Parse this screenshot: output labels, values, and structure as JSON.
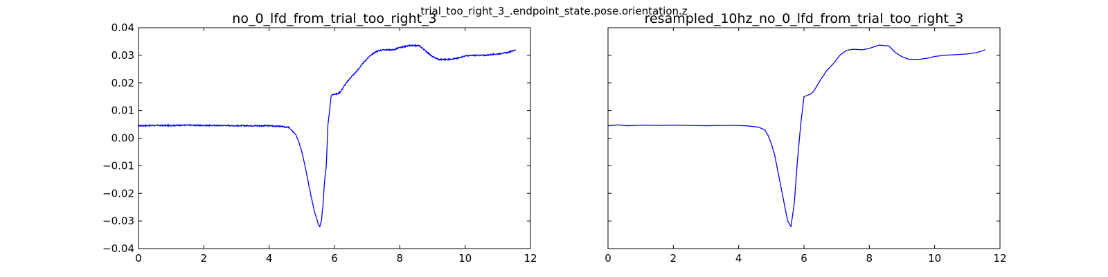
{
  "figure": {
    "suptitle": "trial_too_right_3_.endpoint_state.pose.orientation.z"
  },
  "chart_data": [
    {
      "type": "line",
      "title": "no_0_lfd_from_trial_too_right_3",
      "xlabel": "",
      "ylabel": "",
      "xlim": [
        0,
        12
      ],
      "ylim": [
        -0.04,
        0.04
      ],
      "xticks": [
        0,
        2,
        4,
        6,
        8,
        10,
        12
      ],
      "xtick_labels": [
        "0",
        "2",
        "4",
        "6",
        "8",
        "10",
        "12"
      ],
      "yticks": [
        -0.04,
        -0.03,
        -0.02,
        -0.01,
        0.0,
        0.01,
        0.02,
        0.03,
        0.04
      ],
      "ytick_labels": [
        "−0.04",
        "−0.03",
        "−0.02",
        "−0.01",
        "0.00",
        "0.01",
        "0.02",
        "0.03",
        "0.04"
      ],
      "grid": false,
      "series_color": "#0000ff",
      "noise": 0.0004,
      "x": [
        0.0,
        0.5,
        1.0,
        1.5,
        2.0,
        2.5,
        3.0,
        3.5,
        4.0,
        4.3,
        4.6,
        4.8,
        4.9,
        5.0,
        5.1,
        5.2,
        5.3,
        5.4,
        5.5,
        5.55,
        5.6,
        5.65,
        5.7,
        5.75,
        5.8,
        5.85,
        5.9,
        6.0,
        6.1,
        6.2,
        6.3,
        6.5,
        6.7,
        6.9,
        7.1,
        7.3,
        7.5,
        7.8,
        8.0,
        8.3,
        8.6,
        8.8,
        9.0,
        9.2,
        9.5,
        9.8,
        10.0,
        10.3,
        10.6,
        11.0,
        11.3,
        11.55
      ],
      "y": [
        0.0045,
        0.0046,
        0.0046,
        0.0047,
        0.0046,
        0.0046,
        0.0045,
        0.0045,
        0.0045,
        0.0043,
        0.0039,
        0.0015,
        -0.001,
        -0.005,
        -0.01,
        -0.016,
        -0.022,
        -0.027,
        -0.031,
        -0.0322,
        -0.03,
        -0.024,
        -0.015,
        -0.01,
        0.005,
        0.01,
        0.0155,
        0.016,
        0.016,
        0.017,
        0.019,
        0.022,
        0.0245,
        0.0275,
        0.03,
        0.0315,
        0.032,
        0.032,
        0.0328,
        0.0335,
        0.0335,
        0.0315,
        0.0295,
        0.0285,
        0.0285,
        0.029,
        0.0298,
        0.03,
        0.03,
        0.0305,
        0.031,
        0.032
      ]
    },
    {
      "type": "line",
      "title": "resampled_10hz_no_0_lfd_from_trial_too_right_3",
      "xlabel": "",
      "ylabel": "",
      "xlim": [
        0,
        12
      ],
      "ylim": [
        -0.04,
        0.04
      ],
      "xticks": [
        0,
        2,
        4,
        6,
        8,
        10,
        12
      ],
      "xtick_labels": [
        "0",
        "2",
        "4",
        "6",
        "8",
        "10",
        "12"
      ],
      "yticks": [
        -0.04,
        -0.03,
        -0.02,
        -0.01,
        0.0,
        0.01,
        0.02,
        0.03,
        0.04
      ],
      "ytick_labels": [],
      "grid": false,
      "series_color": "#0000ff",
      "noise": 0,
      "x": [
        0.0,
        0.3,
        0.6,
        1.0,
        1.5,
        2.0,
        2.5,
        3.0,
        3.5,
        4.0,
        4.3,
        4.6,
        4.8,
        4.9,
        5.0,
        5.1,
        5.2,
        5.3,
        5.4,
        5.5,
        5.6,
        5.7,
        5.8,
        5.9,
        6.0,
        6.1,
        6.2,
        6.3,
        6.5,
        6.7,
        6.9,
        7.1,
        7.3,
        7.5,
        7.8,
        8.0,
        8.3,
        8.6,
        8.8,
        9.0,
        9.2,
        9.5,
        9.8,
        10.0,
        10.3,
        10.6,
        11.0,
        11.3,
        11.55
      ],
      "y": [
        0.0045,
        0.0048,
        0.0045,
        0.0047,
        0.0046,
        0.0047,
        0.0046,
        0.0045,
        0.0046,
        0.0046,
        0.0044,
        0.004,
        0.003,
        0.001,
        -0.002,
        -0.006,
        -0.012,
        -0.018,
        -0.024,
        -0.03,
        -0.032,
        -0.024,
        -0.008,
        0.005,
        0.015,
        0.0155,
        0.016,
        0.017,
        0.021,
        0.0245,
        0.027,
        0.03,
        0.0318,
        0.0322,
        0.032,
        0.0325,
        0.0337,
        0.0334,
        0.031,
        0.0295,
        0.0286,
        0.0285,
        0.029,
        0.0296,
        0.03,
        0.0302,
        0.0305,
        0.031,
        0.032
      ]
    }
  ]
}
